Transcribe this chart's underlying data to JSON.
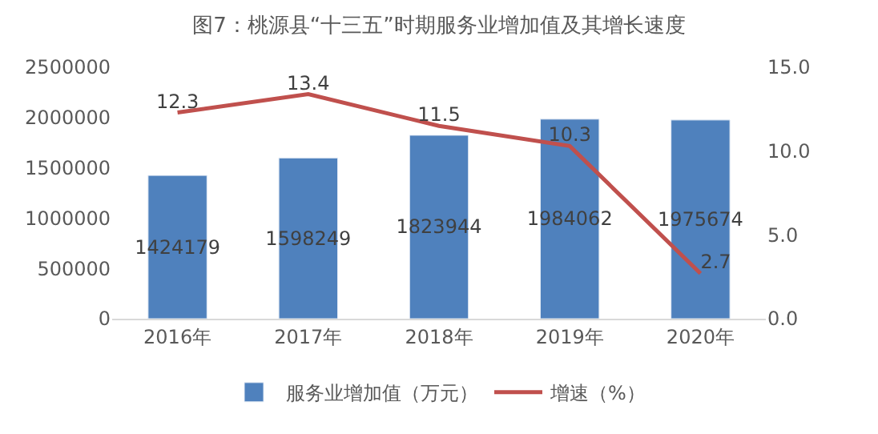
{
  "chart_data": {
    "type": "bar",
    "title": "图7：桃源县“十三五”时期服务业增加值及其增长速度",
    "categories": [
      "2016年",
      "2017年",
      "2018年",
      "2019年",
      "2020年"
    ],
    "series": [
      {
        "name": "服务业增加值（万元）",
        "color": "#4f81bd",
        "values": [
          1424179,
          1598249,
          1823944,
          1984062,
          1975674
        ]
      },
      {
        "name": "增速（%）",
        "type": "line",
        "axis": "y2",
        "color": "#c0504d",
        "values": [
          12.3,
          13.4,
          11.5,
          10.3,
          2.7
        ],
        "value_labels": [
          "12.3",
          "13.4",
          "11.5",
          "10.3",
          "2.7"
        ]
      }
    ],
    "ylim": [
      0,
      2500000
    ],
    "yticks": [
      0,
      500000,
      1000000,
      1500000,
      2000000,
      2500000
    ],
    "y2lim": [
      0,
      15
    ],
    "y2ticks": [
      {
        "value": 0,
        "label": "0.0"
      },
      {
        "value": 5,
        "label": "5.0"
      },
      {
        "value": 10,
        "label": "10.0"
      },
      {
        "value": 15,
        "label": "15.0"
      }
    ],
    "data_labels": true,
    "legend": "bottom",
    "marker": "none",
    "line_style": "solid"
  }
}
